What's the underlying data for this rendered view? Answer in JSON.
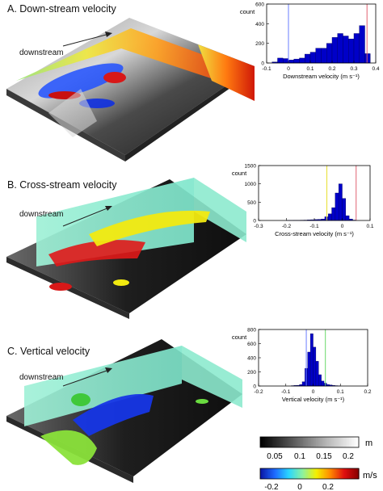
{
  "panels": [
    {
      "title": "A. Down-stream velocity",
      "annotation": "downstream"
    },
    {
      "title": "B. Cross-stream velocity",
      "annotation": "downstream"
    },
    {
      "title": "C. Vertical velocity",
      "annotation": "downstream"
    }
  ],
  "colorbars": {
    "elevation": {
      "ticks": [
        "0.05",
        "0.1",
        "0.15",
        "0.2"
      ],
      "unit": "m",
      "stops": [
        "#000000",
        "#5a5a5a",
        "#b4b4b4",
        "#ffffff"
      ]
    },
    "velocity": {
      "ticks": [
        "-0.2",
        "0",
        "0.2"
      ],
      "unit": "m/s",
      "stops": [
        "#0a1aa8",
        "#1e6aff",
        "#29d6ff",
        "#8cf2a0",
        "#f4f000",
        "#ff8a00",
        "#e01010",
        "#8b0000"
      ]
    }
  },
  "colors": {
    "bar": "#0000c8",
    "bar_edge": "#000060",
    "line_blue": "#6a7cff",
    "line_red": "#e06070",
    "line_yellow": "#e8e030",
    "line_green": "#6ad86a"
  },
  "chart_data": [
    {
      "type": "bar",
      "xlabel": "Downstream velocity (m s⁻¹)",
      "ylabel": "count",
      "xlim": [
        -0.1,
        0.4
      ],
      "ylim": [
        0,
        600
      ],
      "xticks": [
        "-0.1",
        "0",
        "0.1",
        "0.2",
        "0.3",
        "0.4"
      ],
      "yticks": [
        "0",
        "200",
        "400",
        "600"
      ],
      "bin_width": 0.025,
      "bin_starts": [
        -0.1,
        -0.075,
        -0.05,
        -0.025,
        0,
        0.025,
        0.05,
        0.075,
        0.1,
        0.125,
        0.15,
        0.175,
        0.2,
        0.225,
        0.25,
        0.275,
        0.3,
        0.325,
        0.35
      ],
      "values": [
        0,
        10,
        50,
        45,
        30,
        40,
        50,
        90,
        110,
        150,
        150,
        200,
        260,
        300,
        275,
        245,
        300,
        380,
        95
      ],
      "vlines": [
        {
          "x": 0.0,
          "color": "line_blue"
        },
        {
          "x": 0.36,
          "color": "line_red"
        }
      ]
    },
    {
      "type": "bar",
      "xlabel": "Cross-stream velocity (m s⁻¹)",
      "ylabel": "count",
      "xlim": [
        -0.3,
        0.1
      ],
      "ylim": [
        0,
        1500
      ],
      "xticks": [
        "-0.3",
        "-0.2",
        "-0.1",
        "0",
        "0.1"
      ],
      "yticks": [
        "0",
        "500",
        "1000",
        "1500"
      ],
      "bin_width": 0.0125,
      "bin_starts": [
        -0.2,
        -0.1875,
        -0.175,
        -0.1625,
        -0.15,
        -0.1375,
        -0.125,
        -0.1125,
        -0.1,
        -0.0875,
        -0.075,
        -0.0625,
        -0.05,
        -0.0375,
        -0.025,
        -0.0125,
        0,
        0.0125,
        0.025,
        0.0375
      ],
      "values": [
        2,
        3,
        5,
        5,
        8,
        10,
        15,
        20,
        25,
        30,
        40,
        100,
        180,
        350,
        750,
        1000,
        600,
        130,
        40,
        10
      ],
      "vlines": [
        {
          "x": -0.055,
          "color": "line_yellow"
        },
        {
          "x": 0.05,
          "color": "line_red"
        }
      ]
    },
    {
      "type": "bar",
      "xlabel": "Vertical velocity (m s⁻¹)",
      "ylabel": "count",
      "xlim": [
        -0.2,
        0.2
      ],
      "ylim": [
        0,
        800
      ],
      "xticks": [
        "-0.2",
        "-0.1",
        "0",
        "0.1",
        "0.2"
      ],
      "yticks": [
        "0",
        "200",
        "400",
        "600",
        "800"
      ],
      "bin_width": 0.01,
      "bin_starts": [
        -0.08,
        -0.07,
        -0.06,
        -0.05,
        -0.04,
        -0.03,
        -0.02,
        -0.01,
        0,
        0.01,
        0.02,
        0.03,
        0.04,
        0.05,
        0.06,
        0.07,
        0.08,
        0.09
      ],
      "values": [
        5,
        8,
        10,
        20,
        60,
        250,
        480,
        740,
        550,
        350,
        160,
        70,
        40,
        20,
        15,
        8,
        5,
        3
      ],
      "vlines": [
        {
          "x": -0.025,
          "color": "line_blue"
        },
        {
          "x": 0.045,
          "color": "line_green"
        }
      ]
    }
  ]
}
